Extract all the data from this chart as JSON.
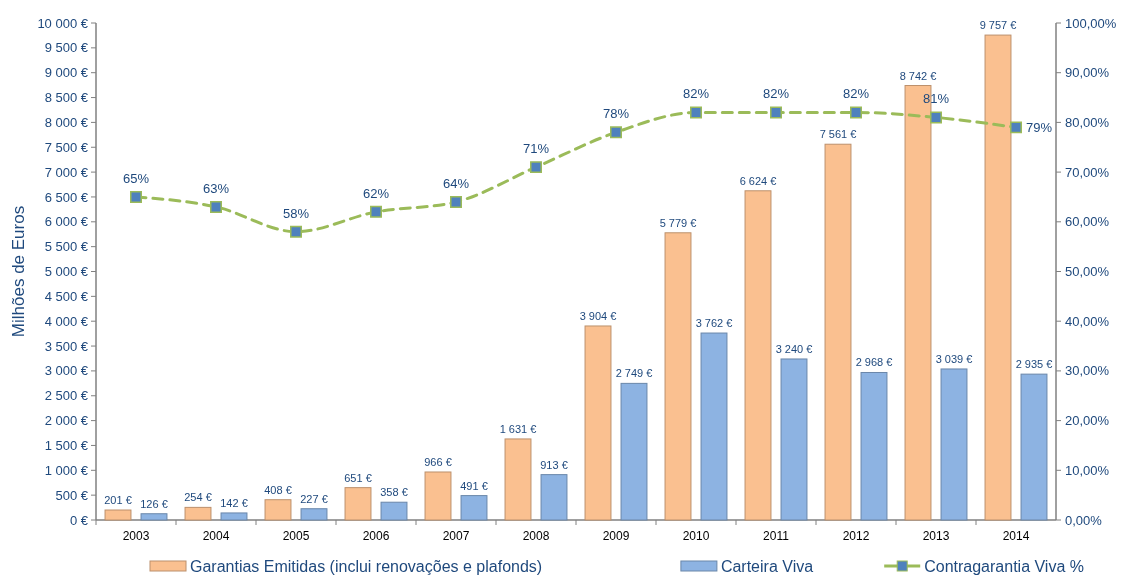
{
  "chart_data": {
    "type": "bar",
    "ylabel": "Milhões de Euros",
    "categories": [
      "2003",
      "2004",
      "2005",
      "2006",
      "2007",
      "2008",
      "2009",
      "2010",
      "2011",
      "2012",
      "2013",
      "2014"
    ],
    "series": [
      {
        "name": "Garantias Emitidas (inclui renovações e plafonds)",
        "color": "#fac090",
        "values": [
          201,
          254,
          408,
          651,
          966,
          1631,
          3904,
          5779,
          6624,
          7561,
          8742,
          9757
        ],
        "value_labels": [
          "201 €",
          "254 €",
          "408 €",
          "651 €",
          "966 €",
          "1 631 €",
          "3 904 €",
          "5 779 €",
          "6 624 €",
          "7 561 €",
          "8 742 €",
          "9 757 €"
        ]
      },
      {
        "name": "Carteira Viva",
        "color": "#8db3e2",
        "values": [
          126,
          142,
          227,
          358,
          491,
          913,
          2749,
          3762,
          3240,
          2968,
          3039,
          2935
        ],
        "value_labels": [
          "126 €",
          "142 €",
          "227 €",
          "358 €",
          "491 €",
          "913 €",
          "2 749 €",
          "3 762 €",
          "3 240 €",
          "2 968 €",
          "3 039 €",
          "2 935 €"
        ]
      },
      {
        "name": "Contragarantia Viva %",
        "type": "line",
        "axis": "y2",
        "color": "#9bbb59",
        "marker": "square",
        "line_style": "dashed",
        "values": [
          65,
          63,
          58,
          62,
          64,
          71,
          78,
          82,
          82,
          82,
          81,
          79
        ],
        "value_labels": [
          "65%",
          "63%",
          "58%",
          "62%",
          "64%",
          "71%",
          "78%",
          "82%",
          "82%",
          "82%",
          "81%",
          "79%"
        ]
      }
    ],
    "ylim": [
      0,
      10000
    ],
    "yticks": [
      {
        "value": 0,
        "label": "0 €"
      },
      {
        "value": 500,
        "label": "500 €"
      },
      {
        "value": 1000,
        "label": "1 000 €"
      },
      {
        "value": 1500,
        "label": "1 500 €"
      },
      {
        "value": 2000,
        "label": "2 000 €"
      },
      {
        "value": 2500,
        "label": "2 500 €"
      },
      {
        "value": 3000,
        "label": "3 000 €"
      },
      {
        "value": 3500,
        "label": "3 500 €"
      },
      {
        "value": 4000,
        "label": "4 000 €"
      },
      {
        "value": 4500,
        "label": "4 500 €"
      },
      {
        "value": 5000,
        "label": "5 000 €"
      },
      {
        "value": 5500,
        "label": "5 500 €"
      },
      {
        "value": 6000,
        "label": "6 000 €"
      },
      {
        "value": 6500,
        "label": "6 500 €"
      },
      {
        "value": 7000,
        "label": "7 000 €"
      },
      {
        "value": 7500,
        "label": "7 500 €"
      },
      {
        "value": 8000,
        "label": "8 000 €"
      },
      {
        "value": 8500,
        "label": "8 500 €"
      },
      {
        "value": 9000,
        "label": "9 000 €"
      },
      {
        "value": 9500,
        "label": "9 500 €"
      },
      {
        "value": 10000,
        "label": "10 000 €"
      }
    ],
    "y2lim": [
      0,
      100
    ],
    "y2ticks": [
      {
        "value": 0,
        "label": "0,00%"
      },
      {
        "value": 10,
        "label": "10,00%"
      },
      {
        "value": 20,
        "label": "20,00%"
      },
      {
        "value": 30,
        "label": "30,00%"
      },
      {
        "value": 40,
        "label": "40,00%"
      },
      {
        "value": 50,
        "label": "50,00%"
      },
      {
        "value": 60,
        "label": "60,00%"
      },
      {
        "value": 70,
        "label": "70,00%"
      },
      {
        "value": 80,
        "label": "80,00%"
      },
      {
        "value": 90,
        "label": "90,00%"
      },
      {
        "value": 100,
        "label": "100,00%"
      }
    ],
    "grid": false,
    "legend": "bottom"
  }
}
